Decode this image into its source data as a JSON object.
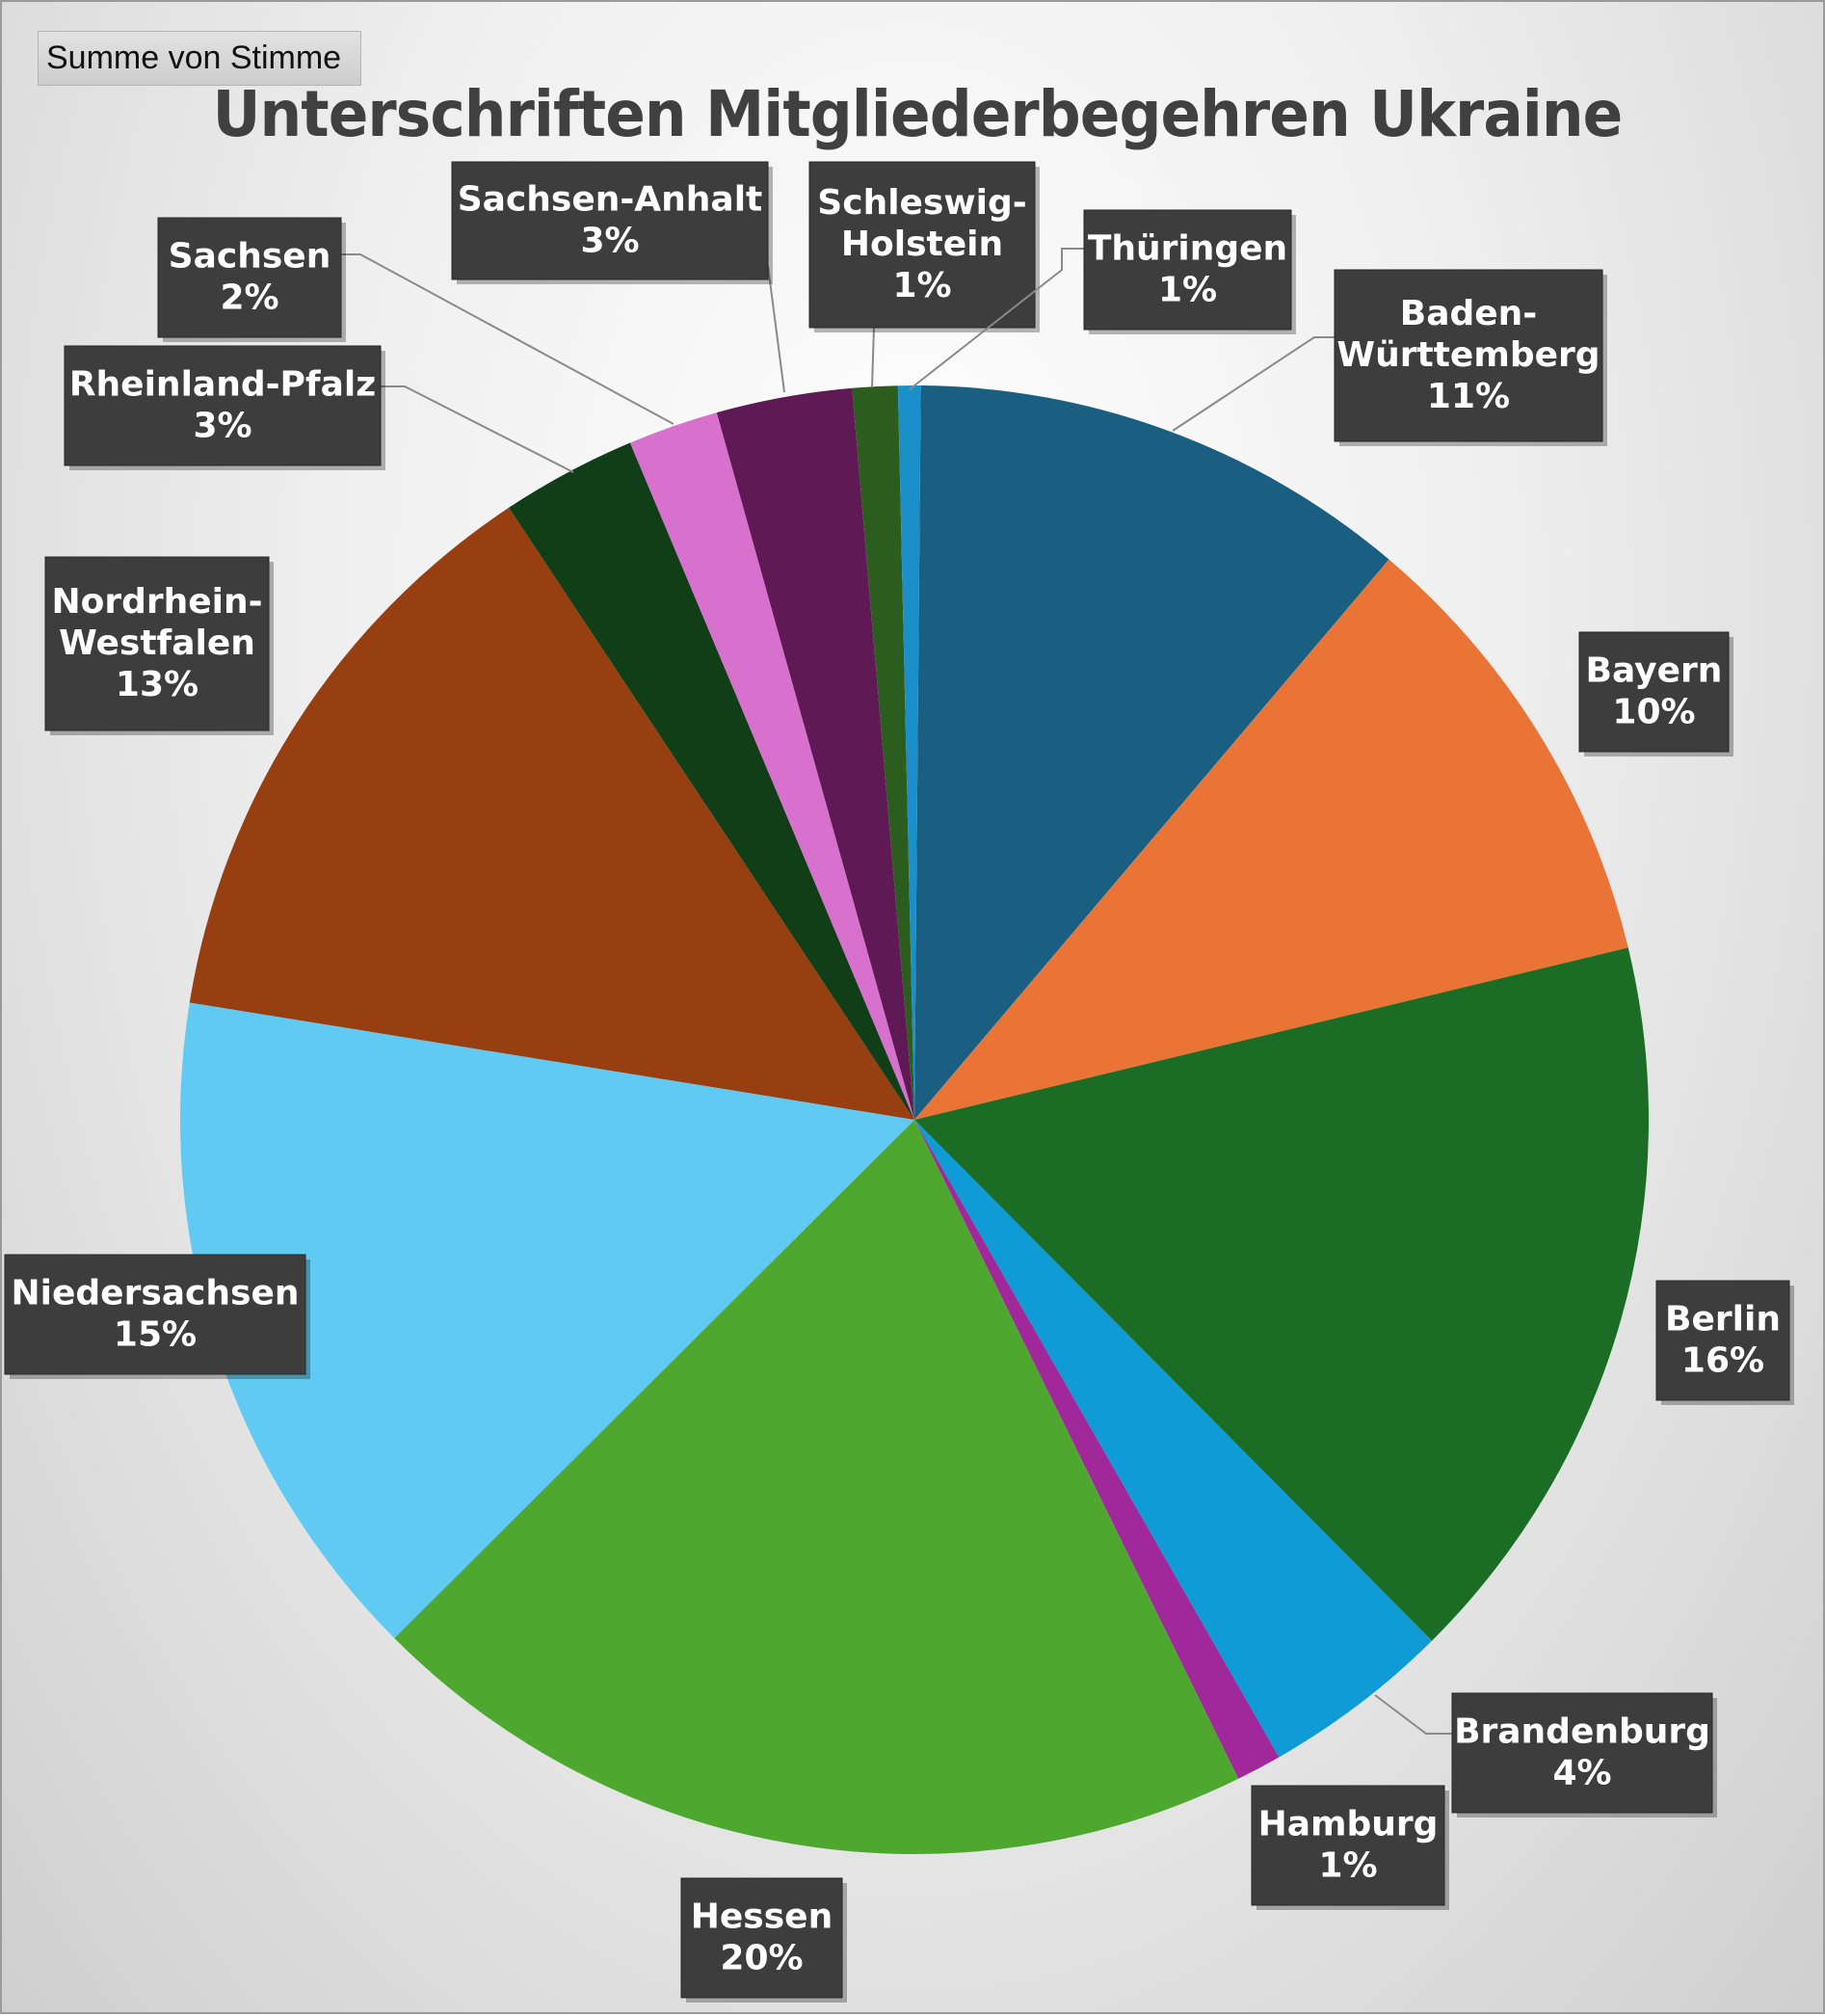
{
  "pivot": {
    "field_button": "Summe von Stimme"
  },
  "chart_data": {
    "type": "pie",
    "title": "Unterschriften Mitgliederbegehren Ukraine",
    "start_angle_deg": 0.5,
    "direction": "clockwise",
    "data_labels": "category name and percentage",
    "slices": [
      {
        "name": "Baden-Württemberg",
        "label_lines": [
          "Baden-",
          "Württemberg"
        ],
        "percent_label": "11%",
        "value": 11.1,
        "color": "#1a5e82"
      },
      {
        "name": "Bayern",
        "label_lines": [
          "Bayern"
        ],
        "percent_label": "10%",
        "value": 10.1,
        "color": "#e97435"
      },
      {
        "name": "Berlin",
        "label_lines": [
          "Berlin"
        ],
        "percent_label": "16%",
        "value": 16.4,
        "color": "#1b6d25"
      },
      {
        "name": "Brandenburg",
        "label_lines": [
          "Brandenburg"
        ],
        "percent_label": "4%",
        "value": 4.2,
        "color": "#0f9bd6"
      },
      {
        "name": "Hamburg",
        "label_lines": [
          "Hamburg"
        ],
        "percent_label": "1%",
        "value": 1.0,
        "color": "#a0289a"
      },
      {
        "name": "Hessen",
        "label_lines": [
          "Hessen"
        ],
        "percent_label": "20%",
        "value": 19.9,
        "color": "#4ea72e"
      },
      {
        "name": "Niedersachsen",
        "label_lines": [
          "Niedersachsen"
        ],
        "percent_label": "15%",
        "value": 15.1,
        "color": "#60caf2"
      },
      {
        "name": "Nordrhein-Westfalen",
        "label_lines": [
          "Nordrhein-",
          "Westfalen"
        ],
        "percent_label": "13%",
        "value": 13.2,
        "color": "#973f11"
      },
      {
        "name": "Rheinland-Pfalz",
        "label_lines": [
          "Rheinland-Pfalz"
        ],
        "percent_label": "3%",
        "value": 3.0,
        "color": "#103e16"
      },
      {
        "name": "Sachsen",
        "label_lines": [
          "Sachsen"
        ],
        "percent_label": "2%",
        "value": 2.0,
        "color": "#d870ce"
      },
      {
        "name": "Sachsen-Anhalt",
        "label_lines": [
          "Sachsen-Anhalt"
        ],
        "percent_label": "3%",
        "value": 3.0,
        "color": "#5f1955"
      },
      {
        "name": "Schleswig-Holstein",
        "label_lines": [
          "Schleswig-",
          "Holstein"
        ],
        "percent_label": "1%",
        "value": 1.0,
        "color": "#2b5e1e"
      },
      {
        "name": "Thüringen",
        "label_lines": [
          "Thüringen"
        ],
        "percent_label": "1%",
        "value": 0.5,
        "color": "#1b8fca"
      }
    ]
  }
}
